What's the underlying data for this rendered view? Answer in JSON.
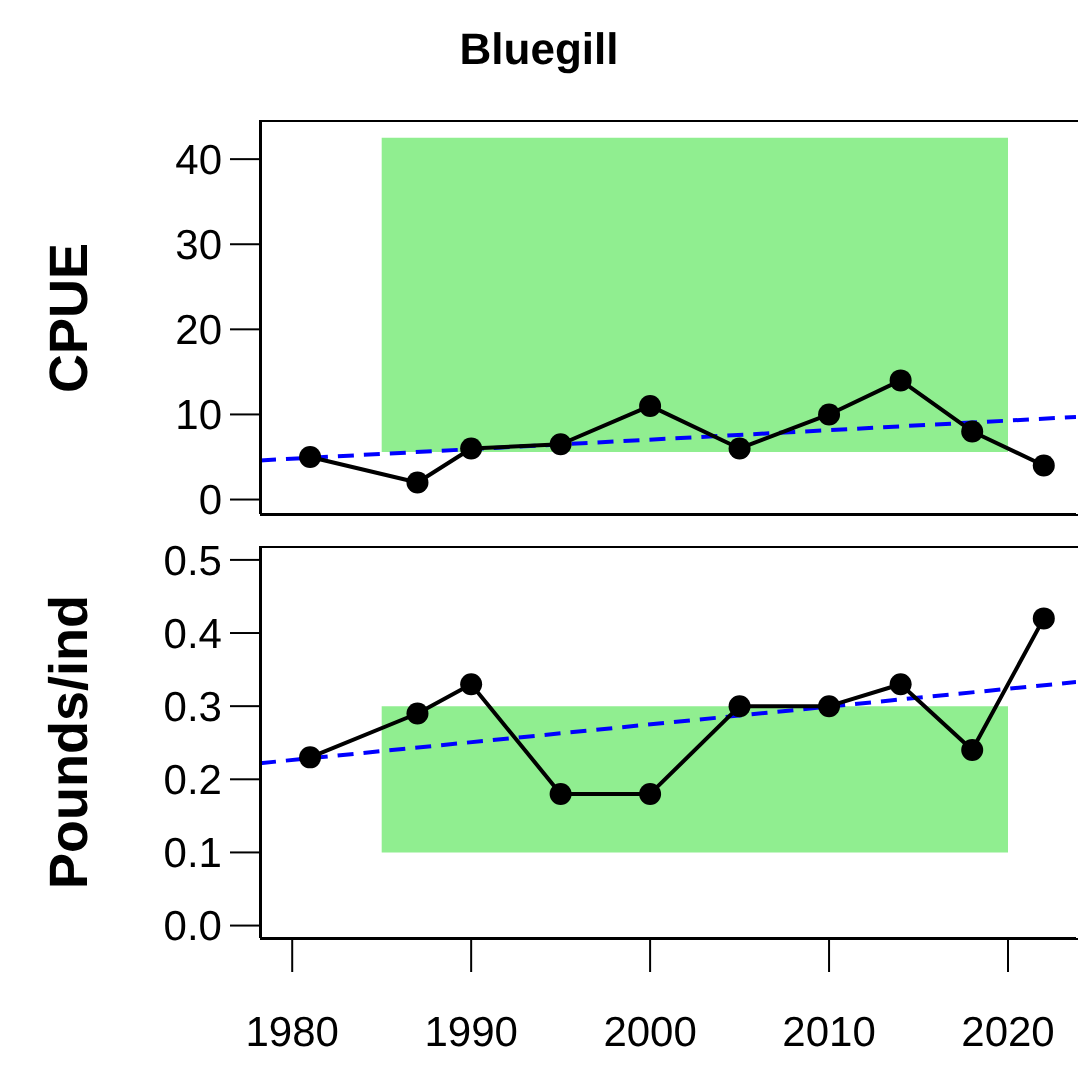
{
  "chart_data": [
    {
      "type": "line",
      "title": "Bluegill",
      "ylabel": "CPUE",
      "xlim": [
        1978.2,
        2023.8
      ],
      "ylim": [
        -1.7,
        44.6
      ],
      "yticks": [
        0,
        10,
        20,
        30,
        40
      ],
      "tick_labels": "y",
      "grid": false,
      "series": [
        {
          "type": "area",
          "x": [
            1985,
            2020
          ],
          "values": [
            null,
            null
          ],
          "lower": [
            5.6,
            5.6
          ],
          "upper": [
            42.5,
            42.5
          ],
          "color": "#90ee90"
        },
        {
          "type": "line",
          "x": [
            1978.2,
            2023.8
          ],
          "values": [
            4.6,
            9.7
          ],
          "color": "#0000ff",
          "line_style": "dashed",
          "marker": "none"
        },
        {
          "x": [
            1981,
            1987,
            1990,
            1995,
            2000,
            2005,
            2010,
            2014,
            2018,
            2022
          ],
          "values": [
            5,
            2,
            6,
            6.5,
            11,
            6,
            10,
            14,
            8,
            4
          ],
          "color": "#000000",
          "line_style": "solid",
          "marker": "circle"
        }
      ]
    },
    {
      "type": "line",
      "ylabel": "Pounds/ind",
      "xlim": [
        1978.2,
        2023.8
      ],
      "xticks": [
        1980,
        1990,
        2000,
        2010,
        2020
      ],
      "ylim": [
        -0.017,
        0.519
      ],
      "yticks": [
        {
          "value": 0,
          "label": "0.0"
        },
        0.1,
        0.2,
        0.3,
        0.4,
        0.5
      ],
      "grid": false,
      "series": [
        {
          "type": "area",
          "x": [
            1985,
            2020
          ],
          "values": [
            null,
            null
          ],
          "lower": [
            0.1,
            0.1
          ],
          "upper": [
            0.3,
            0.3
          ],
          "color": "#90ee90"
        },
        {
          "type": "line",
          "x": [
            1978.2,
            2023.8
          ],
          "values": [
            0.222,
            0.333
          ],
          "color": "#0000ff",
          "line_style": "dashed",
          "marker": "none"
        },
        {
          "x": [
            1981,
            1987,
            1990,
            1995,
            2000,
            2005,
            2010,
            2014,
            2018,
            2022
          ],
          "values": [
            0.23,
            0.29,
            0.33,
            0.18,
            0.18,
            0.3,
            0.3,
            0.33,
            0.24,
            0.42
          ],
          "color": "#000000",
          "line_style": "solid",
          "marker": "circle"
        }
      ]
    }
  ]
}
